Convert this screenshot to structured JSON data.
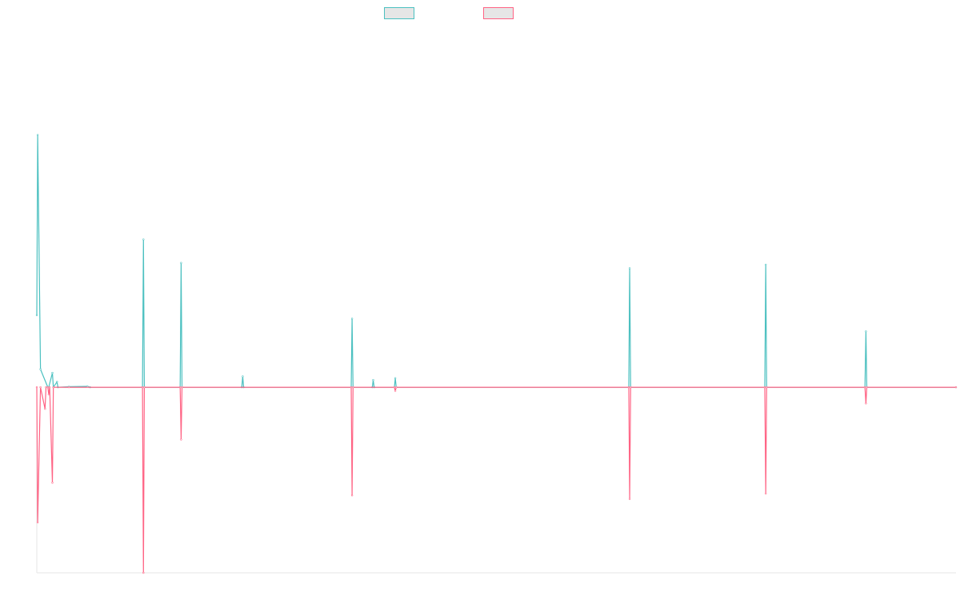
{
  "chart_data": {
    "type": "line",
    "title": "",
    "xlabel": "",
    "ylabel": "",
    "grid": false,
    "legend_position": "top-center",
    "series": [
      {
        "color": "#4bc0c0",
        "points": [
          [
            0,
            40
          ],
          [
            0.1,
            140
          ],
          [
            0.4,
            10
          ],
          [
            1.2,
            0
          ],
          [
            1.3,
            0
          ],
          [
            1.7,
            8
          ],
          [
            1.8,
            0
          ],
          [
            2.2,
            3
          ],
          [
            2.3,
            0
          ],
          [
            3.5,
            0.3
          ],
          [
            5.5,
            0.5
          ],
          [
            5.8,
            0
          ],
          [
            11.5,
            0
          ],
          [
            11.6,
            82
          ],
          [
            11.7,
            0
          ],
          [
            15.6,
            0
          ],
          [
            15.7,
            69
          ],
          [
            15.8,
            0
          ],
          [
            22.3,
            0
          ],
          [
            22.4,
            6
          ],
          [
            22.5,
            0
          ],
          [
            34.2,
            0
          ],
          [
            34.3,
            38
          ],
          [
            34.4,
            0
          ],
          [
            36.5,
            0
          ],
          [
            36.6,
            4
          ],
          [
            36.7,
            0
          ],
          [
            38.9,
            0
          ],
          [
            39.0,
            5
          ],
          [
            39.1,
            0
          ],
          [
            64.4,
            0
          ],
          [
            64.5,
            66
          ],
          [
            64.6,
            0
          ],
          [
            79.2,
            0
          ],
          [
            79.3,
            68
          ],
          [
            79.4,
            0
          ],
          [
            90.1,
            0
          ],
          [
            90.2,
            31
          ],
          [
            90.3,
            0
          ],
          [
            100,
            0
          ]
        ]
      },
      {
        "color": "#ff6384",
        "points": [
          [
            0,
            0
          ],
          [
            0.1,
            -75
          ],
          [
            0.4,
            0
          ],
          [
            0.9,
            -12
          ],
          [
            1.0,
            0
          ],
          [
            1.2,
            0
          ],
          [
            1.3,
            -4
          ],
          [
            1.4,
            0
          ],
          [
            1.7,
            -53
          ],
          [
            1.8,
            0
          ],
          [
            3.5,
            0
          ],
          [
            11.5,
            0
          ],
          [
            11.6,
            -103
          ],
          [
            11.7,
            0
          ],
          [
            15.6,
            0
          ],
          [
            15.7,
            -29
          ],
          [
            15.8,
            0
          ],
          [
            34.2,
            0
          ],
          [
            34.3,
            -60
          ],
          [
            34.4,
            0
          ],
          [
            38.9,
            0
          ],
          [
            39.0,
            -2
          ],
          [
            39.1,
            0
          ],
          [
            64.4,
            0
          ],
          [
            64.5,
            -62
          ],
          [
            64.6,
            0
          ],
          [
            79.2,
            0
          ],
          [
            79.3,
            -59
          ],
          [
            79.4,
            0
          ],
          [
            90.1,
            0
          ],
          [
            90.2,
            -9
          ],
          [
            90.3,
            0
          ],
          [
            100,
            0
          ]
        ]
      }
    ],
    "xlim": [
      0,
      100
    ],
    "ylim": [
      -103,
      199
    ]
  }
}
